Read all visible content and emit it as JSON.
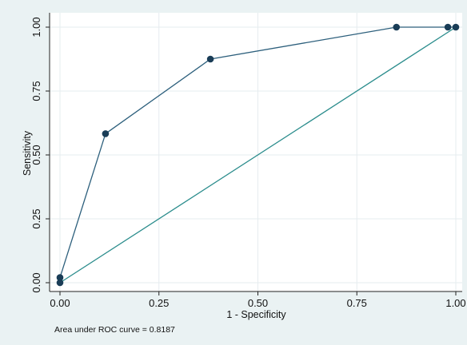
{
  "chart_data": {
    "type": "line",
    "xlabel": "1 - Specificity",
    "ylabel": "Sensitivity",
    "xlim": [
      0,
      1
    ],
    "ylim": [
      0,
      1
    ],
    "x_ticks": [
      "0.00",
      "0.25",
      "0.50",
      "0.75",
      "1.00"
    ],
    "y_ticks": [
      "0.00",
      "0.25",
      "0.50",
      "0.75",
      "1.00"
    ],
    "grid": true,
    "legend": "none",
    "note": "Area under ROC curve = 0.8187",
    "series": [
      {
        "style": "line-with-markers",
        "color": "#2c5f7c",
        "points": [
          {
            "x": 0.0,
            "y": 0.0
          },
          {
            "x": 0.0,
            "y": 0.02
          },
          {
            "x": 0.115,
            "y": 0.583
          },
          {
            "x": 0.38,
            "y": 0.875
          },
          {
            "x": 0.85,
            "y": 1.0
          },
          {
            "x": 0.98,
            "y": 1.0
          },
          {
            "x": 1.0,
            "y": 1.0
          }
        ]
      },
      {
        "style": "reference-line",
        "color": "#2a8c8c",
        "points": [
          {
            "x": 0.0,
            "y": 0.0
          },
          {
            "x": 1.0,
            "y": 1.0
          }
        ]
      }
    ]
  }
}
